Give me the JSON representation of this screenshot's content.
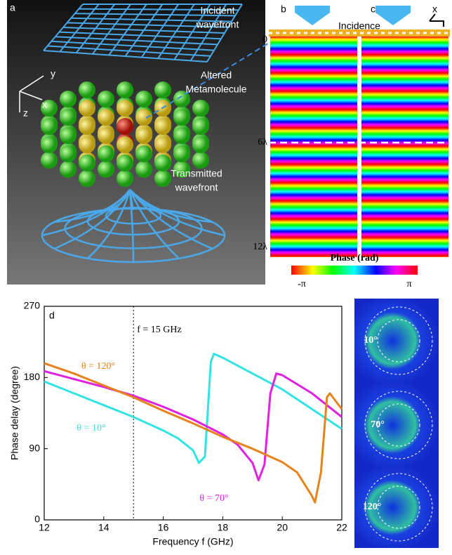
{
  "panel_a": {
    "label": "a",
    "incident": [
      "Incident",
      "wavefront"
    ],
    "altered": [
      "Altered",
      "Metamolecule"
    ],
    "transmitted": [
      "Transmitted",
      "wavefront"
    ],
    "axes": [
      "y",
      "x",
      "z"
    ]
  },
  "panel_bc": {
    "labels": [
      "b",
      "c"
    ],
    "incidence": "Incidence",
    "axis_x": "x",
    "depth_labels": [
      "0",
      "6λ",
      "12λ"
    ],
    "colorbar_title": "Phase (rad)",
    "colorbar_ends": [
      "-π",
      "π"
    ]
  },
  "side_panels": [
    "10°",
    "70°",
    "120°"
  ],
  "chart_data": {
    "type": "line",
    "panel_label": "d",
    "xlabel": "Frequency f (GHz)",
    "ylabel": "Phase delay (degree)",
    "xlim": [
      12,
      22
    ],
    "xticks": [
      12,
      14,
      16,
      18,
      20,
      22
    ],
    "ylim": [
      0,
      270
    ],
    "yticks": [
      0,
      90,
      180,
      270
    ],
    "annotation": "f = 15 GHz",
    "marker_x": 15,
    "series": [
      {
        "name": "θ = 10°",
        "color": "#33e3e3",
        "x": [
          12,
          13,
          14,
          15,
          16,
          16.5,
          17,
          17.2,
          17.4,
          17.5,
          17.6,
          17.7,
          18,
          19,
          20,
          21,
          22
        ],
        "values": [
          175,
          160,
          145,
          130,
          113,
          103,
          88,
          72,
          80,
          140,
          200,
          210,
          205,
          185,
          165,
          140,
          115
        ]
      },
      {
        "name": "θ = 70°",
        "color": "#e022e0",
        "x": [
          12,
          14,
          15,
          16,
          17,
          18,
          18.5,
          19,
          19.2,
          19.4,
          19.6,
          19.8,
          20,
          21,
          22
        ],
        "values": [
          188,
          168,
          157,
          143,
          127,
          108,
          95,
          72,
          50,
          70,
          160,
          185,
          183,
          160,
          130
        ]
      },
      {
        "name": "θ = 120°",
        "color": "#e8821a",
        "x": [
          12,
          13,
          14,
          15,
          16,
          17,
          18,
          19,
          20,
          20.5,
          21,
          21.1,
          21.3,
          21.5,
          21.6,
          22
        ],
        "values": [
          198,
          185,
          170,
          155,
          138,
          122,
          105,
          90,
          73,
          60,
          30,
          22,
          60,
          155,
          160,
          140
        ]
      }
    ]
  }
}
